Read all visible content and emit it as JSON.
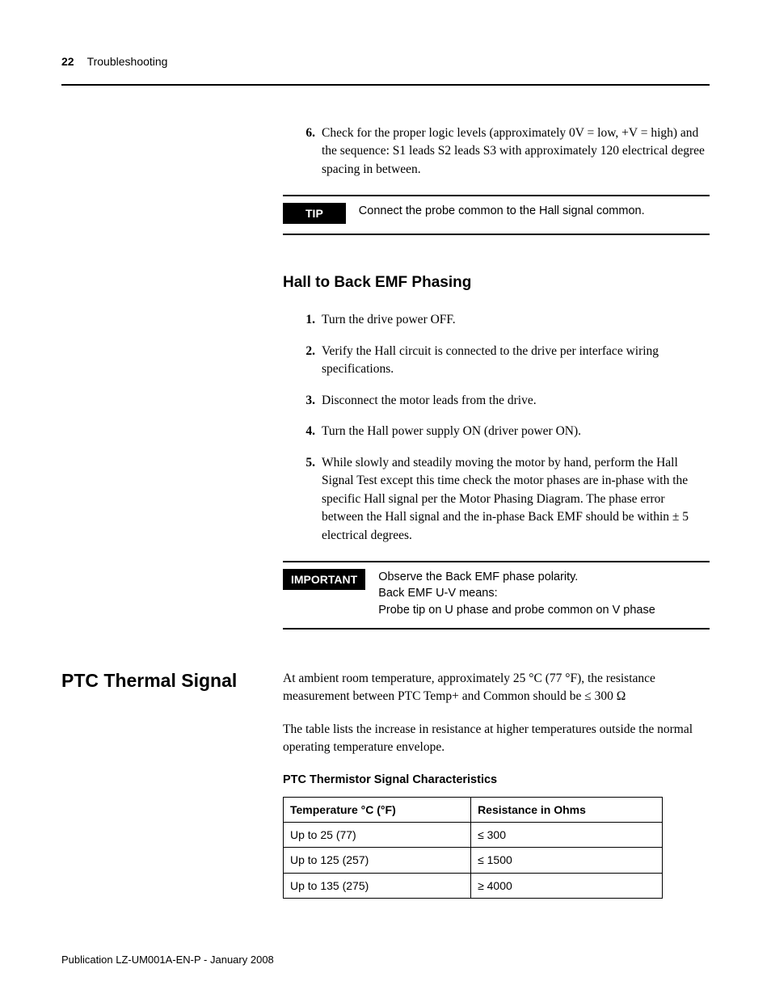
{
  "header": {
    "page_number": "22",
    "section": "Troubleshooting"
  },
  "top_item": {
    "num": "6.",
    "text": "Check for the proper logic levels (approximately 0V = low, +V = high) and the sequence: S1 leads S2 leads S3 with approximately 120 electrical degree spacing in between."
  },
  "tip_callout": {
    "label": "TIP",
    "text": "Connect the probe common to the Hall signal common."
  },
  "subheading": "Hall to Back EMF Phasing",
  "steps": [
    {
      "num": "1.",
      "text": "Turn the drive power OFF."
    },
    {
      "num": "2.",
      "text": "Verify the Hall circuit is connected to the drive per interface wiring specifications."
    },
    {
      "num": "3.",
      "text": "Disconnect the motor leads from the drive."
    },
    {
      "num": "4.",
      "text": "Turn the Hall power supply ON (driver power ON)."
    },
    {
      "num": "5.",
      "text": "While slowly and steadily moving the motor by hand, perform the Hall Signal Test except this time check the motor phases are in-phase with the specific Hall signal per the Motor Phasing Diagram. The phase error between the Hall signal and the in-phase Back EMF should be within ± 5 electrical degrees."
    }
  ],
  "important_callout": {
    "label": "IMPORTANT",
    "line1": "Observe the Back EMF phase polarity.",
    "line2": "Back EMF U-V means:",
    "line3": "Probe tip on U phase and probe common on V phase"
  },
  "side_section": {
    "heading": "PTC Thermal Signal",
    "para1": "At ambient room temperature, approximately 25 °C (77 °F), the resistance measurement between PTC Temp+ and Common should be ≤ 300 Ω",
    "para2": "The table lists the increase in resistance at higher temperatures outside the normal operating temperature envelope."
  },
  "table": {
    "title": "PTC Thermistor Signal Characteristics",
    "col1": "Temperature °C (°F)",
    "col2": "Resistance in Ohms",
    "rows": [
      {
        "c1": "Up to 25 (77)",
        "c2": "≤ 300"
      },
      {
        "c1": "Up to 125 (257)",
        "c2": "≤ 1500"
      },
      {
        "c1": "Up to 135 (275)",
        "c2": "≥ 4000"
      }
    ]
  },
  "footer": "Publication LZ-UM001A-EN-P - January 2008"
}
